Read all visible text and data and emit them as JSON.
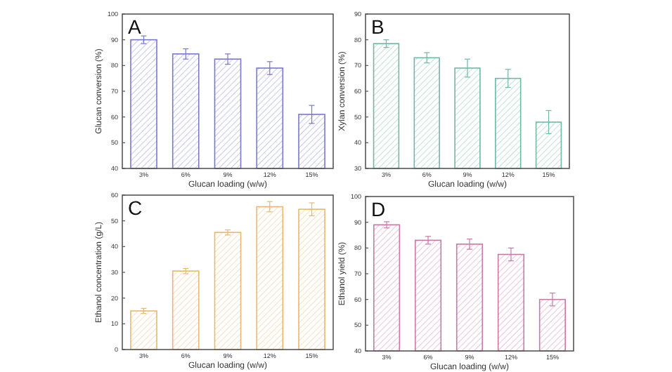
{
  "chart_data": [
    {
      "type": "bar",
      "title": "A",
      "xlabel": "Glucan loading (w/w)",
      "ylabel": "Glucan conversion (%)",
      "categories": [
        "3%",
        "6%",
        "9%",
        "12%",
        "15%"
      ],
      "values": [
        90,
        84.5,
        82.5,
        79,
        61
      ],
      "errors": [
        1.5,
        2,
        2,
        2.5,
        3.5
      ],
      "color": "#7878d0",
      "ylim": [
        40,
        100
      ],
      "yticks": [
        40,
        50,
        60,
        70,
        80,
        90,
        100
      ]
    },
    {
      "type": "bar",
      "title": "B",
      "xlabel": "Glucan loading (w/w)",
      "ylabel": "Xylan conversion (%)",
      "categories": [
        "3%",
        "6%",
        "9%",
        "12%",
        "15%"
      ],
      "values": [
        78.5,
        73,
        69,
        65,
        48
      ],
      "errors": [
        1.5,
        2,
        3.5,
        3.5,
        4.5
      ],
      "color": "#70b8a8",
      "ylim": [
        30,
        90
      ],
      "yticks": [
        30,
        40,
        50,
        60,
        70,
        80,
        90
      ]
    },
    {
      "type": "bar",
      "title": "C",
      "xlabel": "Glucan loading (w/w)",
      "ylabel": "Ethanol concentration (g/L)",
      "categories": [
        "3%",
        "6%",
        "9%",
        "12%",
        "15%"
      ],
      "values": [
        15,
        30.5,
        45.5,
        55.5,
        54.5
      ],
      "errors": [
        1,
        1,
        1,
        2,
        2.5
      ],
      "color": "#e8b870",
      "ylim": [
        0,
        60
      ],
      "yticks": [
        0,
        10,
        20,
        30,
        40,
        50,
        60
      ]
    },
    {
      "type": "bar",
      "title": "D",
      "xlabel": "Glucan loading (w/w)",
      "ylabel": "Ethanol yield (%)",
      "categories": [
        "3%",
        "6%",
        "9%",
        "12%",
        "15%"
      ],
      "values": [
        89,
        83,
        81.5,
        77.5,
        60
      ],
      "errors": [
        1.2,
        1.5,
        2,
        2.5,
        2.5
      ],
      "color": "#c878a8",
      "ylim": [
        40,
        100
      ],
      "yticks": [
        40,
        50,
        60,
        70,
        80,
        90,
        100
      ]
    }
  ]
}
